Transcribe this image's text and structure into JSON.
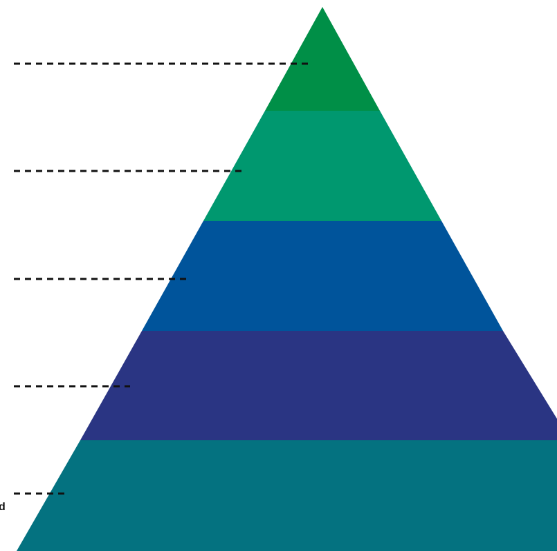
{
  "diagram": {
    "type": "pyramid",
    "levels": [
      {
        "color": "#008f47"
      },
      {
        "color": "#00986f"
      },
      {
        "color": "#00549b"
      },
      {
        "color": "#2a3583"
      },
      {
        "color": "#047280"
      }
    ],
    "connector_style": "dashed",
    "connector_color": "#111111",
    "cropped_label_fragment": "d"
  }
}
